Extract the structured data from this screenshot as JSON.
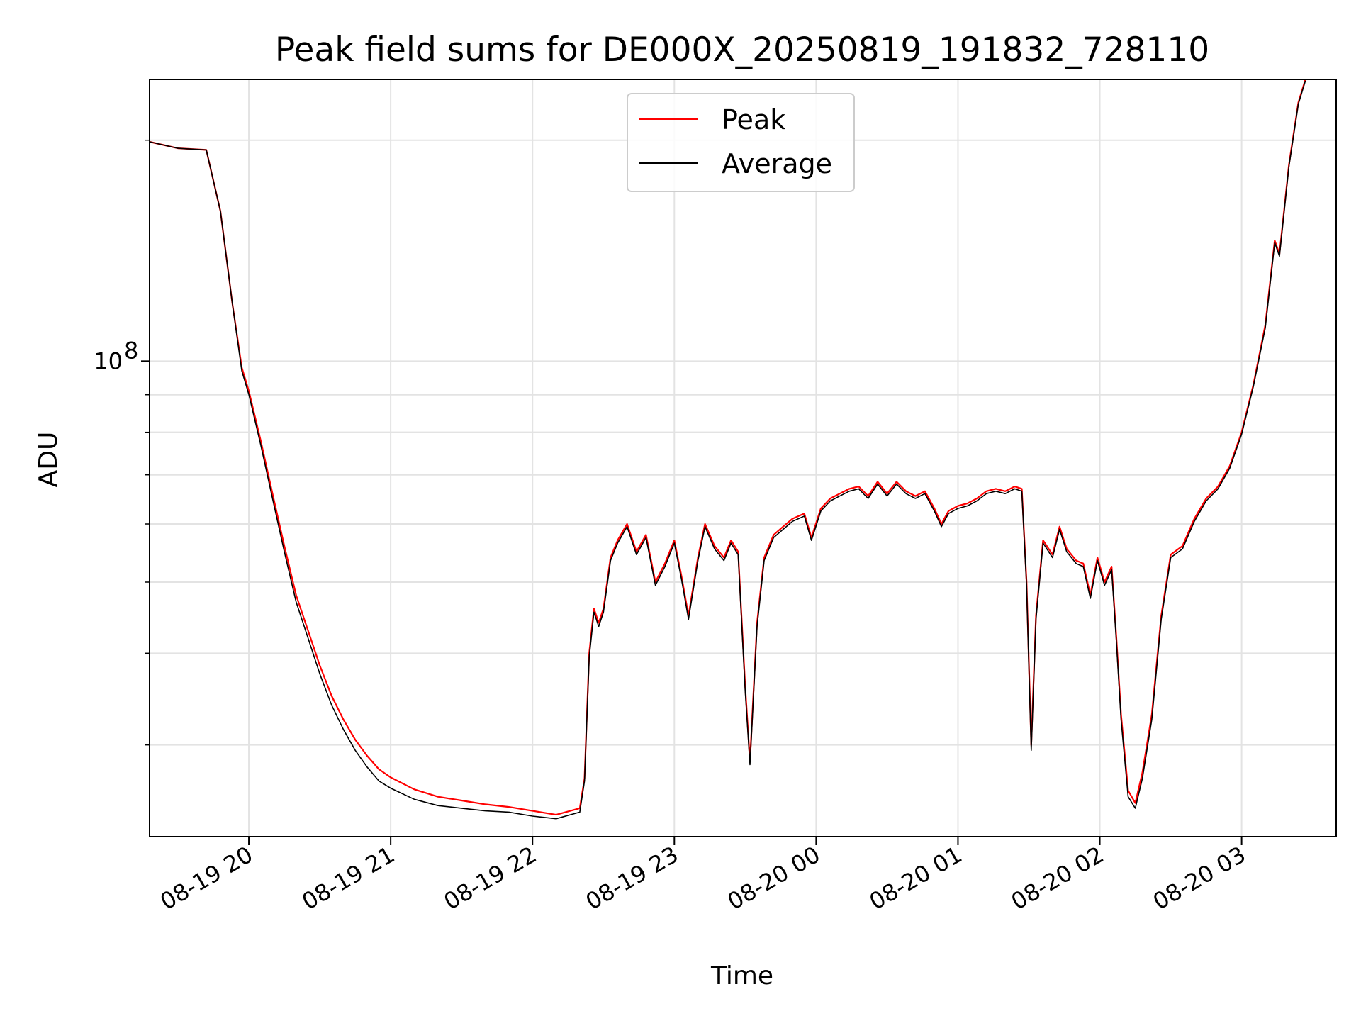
{
  "chart_data": {
    "type": "line",
    "title": "Peak field sums for DE000X_20250819_191832_728110",
    "xlabel": "Time",
    "ylabel": "ADU",
    "x_axis": {
      "type": "datetime",
      "range": [
        "2025-08-19 19:18",
        "2025-08-20 03:40"
      ]
    },
    "y_axis": {
      "scale": "log",
      "range": [
        22500000,
        242000000
      ],
      "ticks": [
        {
          "value": 100000000,
          "base": "10",
          "exp": "8"
        }
      ]
    },
    "x_ticks": [
      {
        "x": "2025-08-19 20:00",
        "label": "08-19 20"
      },
      {
        "x": "2025-08-19 21:00",
        "label": "08-19 21"
      },
      {
        "x": "2025-08-19 22:00",
        "label": "08-19 22"
      },
      {
        "x": "2025-08-19 23:00",
        "label": "08-19 23"
      },
      {
        "x": "2025-08-20 00:00",
        "label": "08-20 00"
      },
      {
        "x": "2025-08-20 01:00",
        "label": "08-20 01"
      },
      {
        "x": "2025-08-20 02:00",
        "label": "08-20 02"
      },
      {
        "x": "2025-08-20 03:00",
        "label": "08-20 03"
      }
    ],
    "grid": true,
    "legend": {
      "position": "top-center"
    },
    "series": [
      {
        "name": "Peak",
        "color": "#ff0000",
        "points": [
          [
            "2025-08-19 19:18",
            199000000
          ],
          [
            "2025-08-19 19:30",
            195000000
          ],
          [
            "2025-08-19 19:42",
            194000000
          ],
          [
            "2025-08-19 19:48",
            160000000
          ],
          [
            "2025-08-19 19:53",
            120000000
          ],
          [
            "2025-08-19 19:57",
            98000000
          ],
          [
            "2025-08-19 20:00",
            91000000
          ],
          [
            "2025-08-19 20:05",
            78000000
          ],
          [
            "2025-08-19 20:10",
            66000000
          ],
          [
            "2025-08-19 20:15",
            56000000
          ],
          [
            "2025-08-19 20:20",
            48000000
          ],
          [
            "2025-08-19 20:25",
            43000000
          ],
          [
            "2025-08-19 20:30",
            38500000
          ],
          [
            "2025-08-19 20:35",
            35000000
          ],
          [
            "2025-08-19 20:40",
            32500000
          ],
          [
            "2025-08-19 20:45",
            30500000
          ],
          [
            "2025-08-19 20:50",
            29000000
          ],
          [
            "2025-08-19 20:55",
            27800000
          ],
          [
            "2025-08-19 21:00",
            27100000
          ],
          [
            "2025-08-19 21:10",
            26100000
          ],
          [
            "2025-08-19 21:20",
            25500000
          ],
          [
            "2025-08-19 21:30",
            25200000
          ],
          [
            "2025-08-19 21:40",
            24900000
          ],
          [
            "2025-08-19 21:50",
            24700000
          ],
          [
            "2025-08-19 22:00",
            24400000
          ],
          [
            "2025-08-19 22:10",
            24100000
          ],
          [
            "2025-08-19 22:20",
            24600000
          ],
          [
            "2025-08-19 22:22",
            27000000
          ],
          [
            "2025-08-19 22:24",
            40000000
          ],
          [
            "2025-08-19 22:26",
            46000000
          ],
          [
            "2025-08-19 22:28",
            44000000
          ],
          [
            "2025-08-19 22:30",
            46000000
          ],
          [
            "2025-08-19 22:33",
            54000000
          ],
          [
            "2025-08-19 22:36",
            57000000
          ],
          [
            "2025-08-19 22:40",
            60000000
          ],
          [
            "2025-08-19 22:44",
            55000000
          ],
          [
            "2025-08-19 22:48",
            58000000
          ],
          [
            "2025-08-19 22:52",
            50000000
          ],
          [
            "2025-08-19 22:56",
            53000000
          ],
          [
            "2025-08-19 23:00",
            57000000
          ],
          [
            "2025-08-19 23:03",
            51000000
          ],
          [
            "2025-08-19 23:06",
            45000000
          ],
          [
            "2025-08-19 23:10",
            54000000
          ],
          [
            "2025-08-19 23:13",
            60000000
          ],
          [
            "2025-08-19 23:17",
            56000000
          ],
          [
            "2025-08-19 23:21",
            54000000
          ],
          [
            "2025-08-19 23:24",
            57000000
          ],
          [
            "2025-08-19 23:27",
            55000000
          ],
          [
            "2025-08-19 23:30",
            36000000
          ],
          [
            "2025-08-19 23:32",
            28500000
          ],
          [
            "2025-08-19 23:35",
            44000000
          ],
          [
            "2025-08-19 23:38",
            54000000
          ],
          [
            "2025-08-19 23:42",
            58000000
          ],
          [
            "2025-08-19 23:46",
            59500000
          ],
          [
            "2025-08-19 23:50",
            61000000
          ],
          [
            "2025-08-19 23:55",
            62000000
          ],
          [
            "2025-08-19 23:58",
            57500000
          ],
          [
            "2025-08-20 00:02",
            63000000
          ],
          [
            "2025-08-20 00:06",
            65000000
          ],
          [
            "2025-08-20 00:10",
            66000000
          ],
          [
            "2025-08-20 00:14",
            67000000
          ],
          [
            "2025-08-20 00:18",
            67500000
          ],
          [
            "2025-08-20 00:22",
            65500000
          ],
          [
            "2025-08-20 00:26",
            68500000
          ],
          [
            "2025-08-20 00:30",
            66000000
          ],
          [
            "2025-08-20 00:34",
            68500000
          ],
          [
            "2025-08-20 00:38",
            66500000
          ],
          [
            "2025-08-20 00:42",
            65500000
          ],
          [
            "2025-08-20 00:46",
            66500000
          ],
          [
            "2025-08-20 00:50",
            63000000
          ],
          [
            "2025-08-20 00:53",
            60000000
          ],
          [
            "2025-08-20 00:56",
            62500000
          ],
          [
            "2025-08-20 01:00",
            63500000
          ],
          [
            "2025-08-20 01:04",
            64000000
          ],
          [
            "2025-08-20 01:08",
            65000000
          ],
          [
            "2025-08-20 01:12",
            66500000
          ],
          [
            "2025-08-20 01:16",
            67000000
          ],
          [
            "2025-08-20 01:20",
            66500000
          ],
          [
            "2025-08-20 01:24",
            67500000
          ],
          [
            "2025-08-20 01:27",
            67000000
          ],
          [
            "2025-08-20 01:29",
            50000000
          ],
          [
            "2025-08-20 01:31",
            30000000
          ],
          [
            "2025-08-20 01:33",
            45000000
          ],
          [
            "2025-08-20 01:36",
            57000000
          ],
          [
            "2025-08-20 01:40",
            54500000
          ],
          [
            "2025-08-20 01:43",
            59500000
          ],
          [
            "2025-08-20 01:46",
            55500000
          ],
          [
            "2025-08-20 01:50",
            53500000
          ],
          [
            "2025-08-20 01:53",
            53000000
          ],
          [
            "2025-08-20 01:56",
            48000000
          ],
          [
            "2025-08-20 01:59",
            54000000
          ],
          [
            "2025-08-20 02:02",
            50000000
          ],
          [
            "2025-08-20 02:05",
            52500000
          ],
          [
            "2025-08-20 02:07",
            42000000
          ],
          [
            "2025-08-20 02:09",
            33000000
          ],
          [
            "2025-08-20 02:12",
            26000000
          ],
          [
            "2025-08-20 02:15",
            25000000
          ],
          [
            "2025-08-20 02:18",
            27500000
          ],
          [
            "2025-08-20 02:22",
            33000000
          ],
          [
            "2025-08-20 02:26",
            45000000
          ],
          [
            "2025-08-20 02:30",
            54500000
          ],
          [
            "2025-08-20 02:35",
            56000000
          ],
          [
            "2025-08-20 02:40",
            61000000
          ],
          [
            "2025-08-20 02:45",
            65000000
          ],
          [
            "2025-08-20 02:50",
            67500000
          ],
          [
            "2025-08-20 02:55",
            72000000
          ],
          [
            "2025-08-20 03:00",
            80000000
          ],
          [
            "2025-08-20 03:05",
            93000000
          ],
          [
            "2025-08-20 03:10",
            112000000
          ],
          [
            "2025-08-20 03:14",
            146000000
          ],
          [
            "2025-08-20 03:16",
            140000000
          ],
          [
            "2025-08-20 03:20",
            185000000
          ],
          [
            "2025-08-20 03:24",
            225000000
          ],
          [
            "2025-08-20 03:27",
            242000000
          ]
        ]
      },
      {
        "name": "Average",
        "color": "#000000",
        "points": [
          [
            "2025-08-19 19:18",
            199000000
          ],
          [
            "2025-08-19 19:30",
            195000000
          ],
          [
            "2025-08-19 19:42",
            194000000
          ],
          [
            "2025-08-19 19:48",
            160000000
          ],
          [
            "2025-08-19 19:53",
            120000000
          ],
          [
            "2025-08-19 19:57",
            97000000
          ],
          [
            "2025-08-19 20:00",
            90000000
          ],
          [
            "2025-08-19 20:05",
            77000000
          ],
          [
            "2025-08-19 20:10",
            65000000
          ],
          [
            "2025-08-19 20:15",
            55000000
          ],
          [
            "2025-08-19 20:20",
            47000000
          ],
          [
            "2025-08-19 20:25",
            42000000
          ],
          [
            "2025-08-19 20:30",
            37500000
          ],
          [
            "2025-08-19 20:35",
            34000000
          ],
          [
            "2025-08-19 20:40",
            31500000
          ],
          [
            "2025-08-19 20:45",
            29500000
          ],
          [
            "2025-08-19 20:50",
            28000000
          ],
          [
            "2025-08-19 20:55",
            26800000
          ],
          [
            "2025-08-19 21:00",
            26200000
          ],
          [
            "2025-08-19 21:10",
            25300000
          ],
          [
            "2025-08-19 21:20",
            24800000
          ],
          [
            "2025-08-19 21:30",
            24600000
          ],
          [
            "2025-08-19 21:40",
            24400000
          ],
          [
            "2025-08-19 21:50",
            24300000
          ],
          [
            "2025-08-19 22:00",
            24000000
          ],
          [
            "2025-08-19 22:10",
            23800000
          ],
          [
            "2025-08-19 22:20",
            24300000
          ],
          [
            "2025-08-19 22:22",
            26800000
          ],
          [
            "2025-08-19 22:24",
            39500000
          ],
          [
            "2025-08-19 22:26",
            45500000
          ],
          [
            "2025-08-19 22:28",
            43500000
          ],
          [
            "2025-08-19 22:30",
            45500000
          ],
          [
            "2025-08-19 22:33",
            53500000
          ],
          [
            "2025-08-19 22:36",
            56500000
          ],
          [
            "2025-08-19 22:40",
            59500000
          ],
          [
            "2025-08-19 22:44",
            54500000
          ],
          [
            "2025-08-19 22:48",
            57500000
          ],
          [
            "2025-08-19 22:52",
            49500000
          ],
          [
            "2025-08-19 22:56",
            52500000
          ],
          [
            "2025-08-19 23:00",
            56500000
          ],
          [
            "2025-08-19 23:03",
            50500000
          ],
          [
            "2025-08-19 23:06",
            44500000
          ],
          [
            "2025-08-19 23:10",
            53500000
          ],
          [
            "2025-08-19 23:13",
            59500000
          ],
          [
            "2025-08-19 23:17",
            55500000
          ],
          [
            "2025-08-19 23:21",
            53500000
          ],
          [
            "2025-08-19 23:24",
            56500000
          ],
          [
            "2025-08-19 23:27",
            54500000
          ],
          [
            "2025-08-19 23:30",
            35500000
          ],
          [
            "2025-08-19 23:32",
            28200000
          ],
          [
            "2025-08-19 23:35",
            43500000
          ],
          [
            "2025-08-19 23:38",
            53500000
          ],
          [
            "2025-08-19 23:42",
            57500000
          ],
          [
            "2025-08-19 23:46",
            59000000
          ],
          [
            "2025-08-19 23:50",
            60500000
          ],
          [
            "2025-08-19 23:55",
            61500000
          ],
          [
            "2025-08-19 23:58",
            57000000
          ],
          [
            "2025-08-20 00:02",
            62500000
          ],
          [
            "2025-08-20 00:06",
            64500000
          ],
          [
            "2025-08-20 00:10",
            65500000
          ],
          [
            "2025-08-20 00:14",
            66500000
          ],
          [
            "2025-08-20 00:18",
            67000000
          ],
          [
            "2025-08-20 00:22",
            65000000
          ],
          [
            "2025-08-20 00:26",
            68000000
          ],
          [
            "2025-08-20 00:30",
            65500000
          ],
          [
            "2025-08-20 00:34",
            68000000
          ],
          [
            "2025-08-20 00:38",
            66000000
          ],
          [
            "2025-08-20 00:42",
            65000000
          ],
          [
            "2025-08-20 00:46",
            66000000
          ],
          [
            "2025-08-20 00:50",
            62500000
          ],
          [
            "2025-08-20 00:53",
            59500000
          ],
          [
            "2025-08-20 00:56",
            62000000
          ],
          [
            "2025-08-20 01:00",
            63000000
          ],
          [
            "2025-08-20 01:04",
            63500000
          ],
          [
            "2025-08-20 01:08",
            64500000
          ],
          [
            "2025-08-20 01:12",
            66000000
          ],
          [
            "2025-08-20 01:16",
            66500000
          ],
          [
            "2025-08-20 01:20",
            66000000
          ],
          [
            "2025-08-20 01:24",
            67000000
          ],
          [
            "2025-08-20 01:27",
            66500000
          ],
          [
            "2025-08-20 01:29",
            49500000
          ],
          [
            "2025-08-20 01:31",
            29500000
          ],
          [
            "2025-08-20 01:33",
            44500000
          ],
          [
            "2025-08-20 01:36",
            56500000
          ],
          [
            "2025-08-20 01:40",
            54000000
          ],
          [
            "2025-08-20 01:43",
            59000000
          ],
          [
            "2025-08-20 01:46",
            55000000
          ],
          [
            "2025-08-20 01:50",
            53000000
          ],
          [
            "2025-08-20 01:53",
            52500000
          ],
          [
            "2025-08-20 01:56",
            47500000
          ],
          [
            "2025-08-20 01:59",
            53500000
          ],
          [
            "2025-08-20 02:02",
            49500000
          ],
          [
            "2025-08-20 02:05",
            52000000
          ],
          [
            "2025-08-20 02:07",
            41500000
          ],
          [
            "2025-08-20 02:09",
            32500000
          ],
          [
            "2025-08-20 02:12",
            25500000
          ],
          [
            "2025-08-20 02:15",
            24600000
          ],
          [
            "2025-08-20 02:18",
            27000000
          ],
          [
            "2025-08-20 02:22",
            32500000
          ],
          [
            "2025-08-20 02:26",
            44500000
          ],
          [
            "2025-08-20 02:30",
            54000000
          ],
          [
            "2025-08-20 02:35",
            55500000
          ],
          [
            "2025-08-20 02:40",
            60500000
          ],
          [
            "2025-08-20 02:45",
            64500000
          ],
          [
            "2025-08-20 02:50",
            67000000
          ],
          [
            "2025-08-20 02:55",
            71500000
          ],
          [
            "2025-08-20 03:00",
            79500000
          ],
          [
            "2025-08-20 03:05",
            92500000
          ],
          [
            "2025-08-20 03:10",
            111000000
          ],
          [
            "2025-08-20 03:14",
            145000000
          ],
          [
            "2025-08-20 03:16",
            139000000
          ],
          [
            "2025-08-20 03:20",
            184000000
          ],
          [
            "2025-08-20 03:24",
            224000000
          ],
          [
            "2025-08-20 03:27",
            241000000
          ]
        ]
      }
    ]
  }
}
